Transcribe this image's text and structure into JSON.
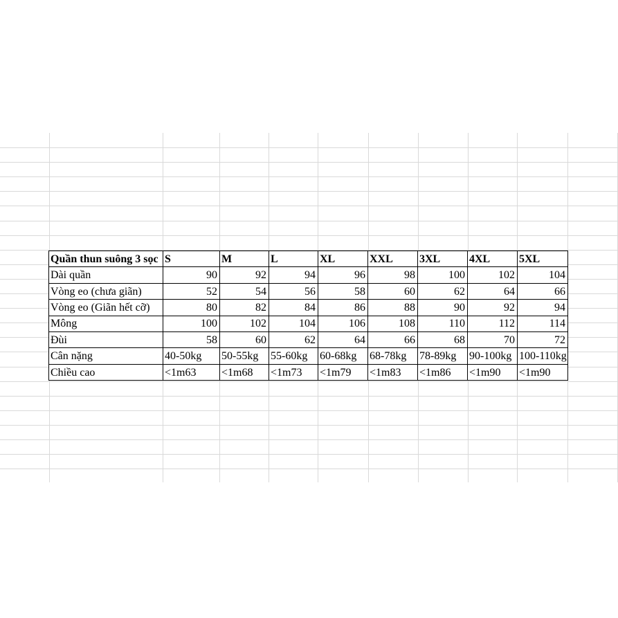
{
  "page": {
    "background": "#ffffff",
    "gridline_color": "#d9d9d9",
    "table_border_color": "#000000",
    "text_color": "#000000"
  },
  "size_chart": {
    "title": "Quần thun suông 3 sọc",
    "size_headers": [
      "S",
      "M",
      "L",
      "XL",
      "XXL",
      "3XL",
      "4XL",
      "5XL"
    ],
    "rows": [
      {
        "label": "Dài quần",
        "align": "right",
        "values": [
          "90",
          "92",
          "94",
          "96",
          "98",
          "100",
          "102",
          "104"
        ]
      },
      {
        "label": "Vòng eo (chưa giãn)",
        "align": "right",
        "values": [
          "52",
          "54",
          "56",
          "58",
          "60",
          "62",
          "64",
          "66"
        ]
      },
      {
        "label": "Vòng eo (Giãn hết cỡ)",
        "align": "right",
        "values": [
          "80",
          "82",
          "84",
          "86",
          "88",
          "90",
          "92",
          "94"
        ]
      },
      {
        "label": "Mông",
        "align": "right",
        "values": [
          "100",
          "102",
          "104",
          "106",
          "108",
          "110",
          "112",
          "114"
        ]
      },
      {
        "label": "Đùi",
        "align": "right",
        "values": [
          "58",
          "60",
          "62",
          "64",
          "66",
          "68",
          "70",
          "72"
        ]
      },
      {
        "label": "Cân nặng",
        "align": "left",
        "values": [
          "40-50kg",
          "50-55kg",
          "55-60kg",
          "60-68kg",
          "68-78kg",
          "78-89kg",
          "90-100kg",
          "100-110kg"
        ]
      },
      {
        "label": "Chiều cao",
        "align": "left",
        "values": [
          "<1m63",
          "<1m68",
          "<1m73",
          "<1m79",
          "<1m83",
          "<1m86",
          "<1m90",
          "<1m90"
        ]
      }
    ]
  }
}
